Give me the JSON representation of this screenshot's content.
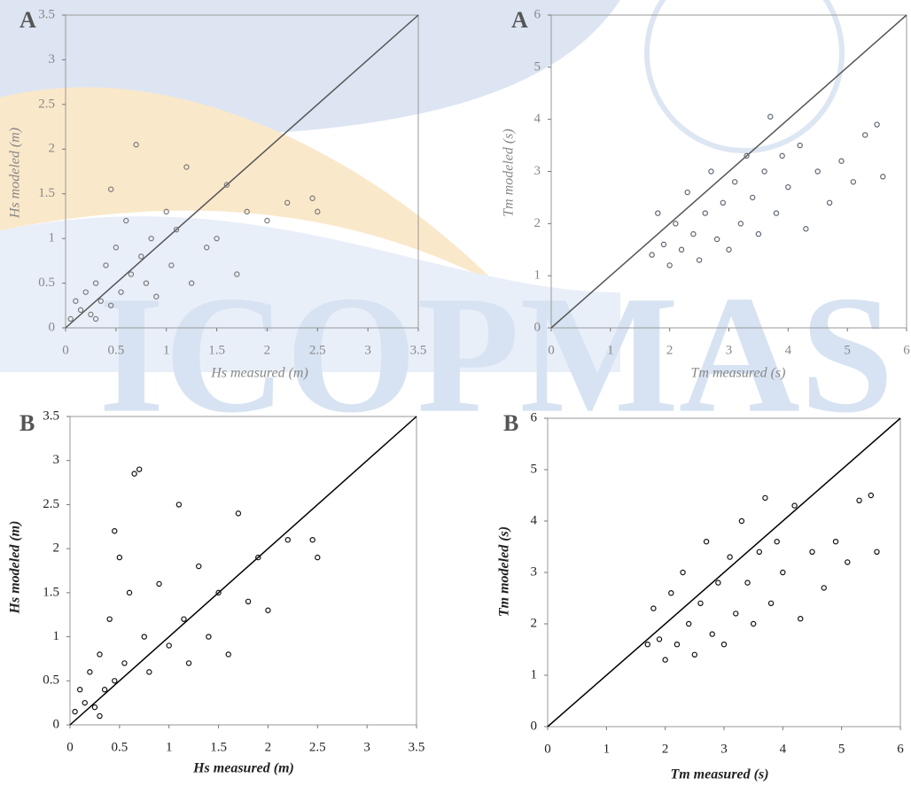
{
  "watermark": "ICOPMAS",
  "chart_data": [
    {
      "type": "scatter",
      "panel_label": "A",
      "xlabel": "Hs measured (m)",
      "ylabel": "Hs modeled (m)",
      "xlim": [
        0,
        3.5
      ],
      "ylim": [
        0,
        3.5
      ],
      "xticks": [
        0,
        0.5,
        1,
        1.5,
        2,
        2.5,
        3,
        3.5
      ],
      "yticks": [
        0,
        0.5,
        1,
        1.5,
        2,
        2.5,
        3,
        3.5
      ],
      "diagonal": true,
      "color": "#7a7a7a",
      "x": [
        0.05,
        0.1,
        0.15,
        0.2,
        0.25,
        0.3,
        0.35,
        0.4,
        0.45,
        0.5,
        0.55,
        0.6,
        0.65,
        0.7,
        0.75,
        0.8,
        0.85,
        0.9,
        1.0,
        1.05,
        1.1,
        1.2,
        1.25,
        1.4,
        1.5,
        1.6,
        1.7,
        1.8,
        2.0,
        2.2,
        2.45,
        2.5,
        0.45,
        0.3
      ],
      "values": [
        0.1,
        0.3,
        0.2,
        0.4,
        0.15,
        0.5,
        0.3,
        0.7,
        0.25,
        0.9,
        0.4,
        1.2,
        0.6,
        2.05,
        0.8,
        0.5,
        1.0,
        0.35,
        1.3,
        0.7,
        1.1,
        1.8,
        0.5,
        0.9,
        1.0,
        1.6,
        0.6,
        1.3,
        1.2,
        1.4,
        1.45,
        1.3,
        1.55,
        0.1
      ]
    },
    {
      "type": "scatter",
      "panel_label": "A",
      "xlabel": "Tm measured (s)",
      "ylabel": "Tm modeled (s)",
      "xlim": [
        0,
        6
      ],
      "ylim": [
        0,
        6
      ],
      "xticks": [
        0,
        1,
        2,
        3,
        4,
        5,
        6
      ],
      "yticks": [
        0,
        1,
        2,
        3,
        4,
        5,
        6
      ],
      "diagonal": true,
      "color": "#5f6672",
      "x": [
        1.7,
        1.8,
        1.9,
        2.0,
        2.1,
        2.2,
        2.3,
        2.4,
        2.5,
        2.6,
        2.7,
        2.8,
        2.9,
        3.0,
        3.1,
        3.2,
        3.3,
        3.4,
        3.5,
        3.6,
        3.7,
        3.8,
        3.9,
        4.0,
        4.2,
        4.3,
        4.5,
        4.7,
        4.9,
        5.1,
        5.3,
        5.5,
        5.6
      ],
      "values": [
        1.4,
        2.2,
        1.6,
        1.2,
        2.0,
        1.5,
        2.6,
        1.8,
        1.3,
        2.2,
        3.0,
        1.7,
        2.4,
        1.5,
        2.8,
        2.0,
        3.3,
        2.5,
        1.8,
        3.0,
        4.05,
        2.2,
        3.3,
        2.7,
        3.5,
        1.9,
        3.0,
        2.4,
        3.2,
        2.8,
        3.7,
        3.9,
        2.9
      ]
    },
    {
      "type": "scatter",
      "panel_label": "B",
      "xlabel": "Hs measured (m)",
      "ylabel": "Hs modeled (m)",
      "xlim": [
        0,
        3.5
      ],
      "ylim": [
        0,
        3.5
      ],
      "xticks": [
        0,
        0.5,
        1,
        1.5,
        2,
        2.5,
        3,
        3.5
      ],
      "yticks": [
        0,
        0.5,
        1,
        1.5,
        2,
        2.5,
        3,
        3.5
      ],
      "diagonal": true,
      "color": "#111111",
      "x": [
        0.05,
        0.1,
        0.15,
        0.2,
        0.25,
        0.3,
        0.35,
        0.4,
        0.45,
        0.5,
        0.55,
        0.6,
        0.65,
        0.7,
        0.75,
        0.8,
        0.9,
        1.0,
        1.1,
        1.15,
        1.2,
        1.3,
        1.4,
        1.5,
        1.6,
        1.7,
        1.8,
        1.9,
        2.0,
        2.2,
        2.45,
        2.5,
        0.45,
        0.3
      ],
      "values": [
        0.15,
        0.4,
        0.25,
        0.6,
        0.2,
        0.8,
        0.4,
        1.2,
        0.5,
        1.9,
        0.7,
        1.5,
        2.85,
        2.9,
        1.0,
        0.6,
        1.6,
        0.9,
        2.5,
        1.2,
        0.7,
        1.8,
        1.0,
        1.5,
        0.8,
        2.4,
        1.4,
        1.9,
        1.3,
        2.1,
        2.1,
        1.9,
        2.2,
        0.1
      ]
    },
    {
      "type": "scatter",
      "panel_label": "B",
      "xlabel": "Tm measured (s)",
      "ylabel": "Tm modeled (s)",
      "xlim": [
        0,
        6
      ],
      "ylim": [
        0,
        6
      ],
      "xticks": [
        0,
        1,
        2,
        3,
        4,
        5,
        6
      ],
      "yticks": [
        0,
        1,
        2,
        3,
        4,
        5,
        6
      ],
      "diagonal": true,
      "color": "#111111",
      "x": [
        1.7,
        1.8,
        1.9,
        2.0,
        2.1,
        2.2,
        2.3,
        2.4,
        2.5,
        2.6,
        2.7,
        2.8,
        2.9,
        3.0,
        3.1,
        3.2,
        3.3,
        3.4,
        3.5,
        3.6,
        3.7,
        3.8,
        3.9,
        4.0,
        4.2,
        4.3,
        4.5,
        4.7,
        4.9,
        5.1,
        5.3,
        5.5,
        5.6
      ],
      "values": [
        1.6,
        2.3,
        1.7,
        1.3,
        2.6,
        1.6,
        3.0,
        2.0,
        1.4,
        2.4,
        3.6,
        1.8,
        2.8,
        1.6,
        3.3,
        2.2,
        4.0,
        2.8,
        2.0,
        3.4,
        4.45,
        2.4,
        3.6,
        3.0,
        4.3,
        2.1,
        3.4,
        2.7,
        3.6,
        3.2,
        4.4,
        4.5,
        3.4
      ]
    }
  ]
}
